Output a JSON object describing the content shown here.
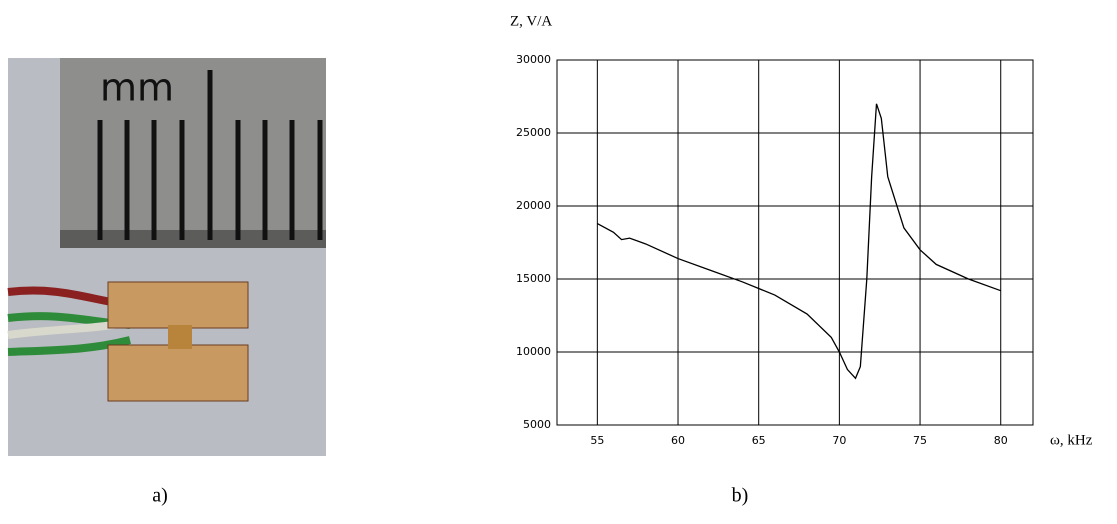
{
  "photo": {
    "ruler_label": "mm",
    "caption": "a)"
  },
  "chart_data": {
    "type": "line",
    "caption": "b)",
    "ylabel": "Z, V/A",
    "xlabel": "ω, kHz",
    "x": [
      55,
      56,
      56.5,
      57,
      58,
      60,
      62,
      64,
      66,
      68,
      69.5,
      70,
      70.5,
      71,
      71.3,
      71.7,
      72,
      72.3,
      72.6,
      73,
      74,
      75,
      76,
      78,
      80
    ],
    "series": [
      {
        "color": "#000000",
        "values": [
          18800,
          18200,
          17700,
          17800,
          17400,
          16400,
          15600,
          14800,
          13900,
          12600,
          11000,
          10000,
          8800,
          8200,
          9000,
          15000,
          22000,
          27000,
          26000,
          22000,
          18500,
          17000,
          16000,
          15000,
          14200
        ]
      }
    ],
    "xlim": [
      52.5,
      82
    ],
    "ylim": [
      5000,
      30000
    ],
    "xticks": [
      55,
      60,
      65,
      70,
      75,
      80
    ],
    "yticks": [
      5000,
      10000,
      15000,
      20000,
      25000,
      30000
    ],
    "grid": true
  }
}
